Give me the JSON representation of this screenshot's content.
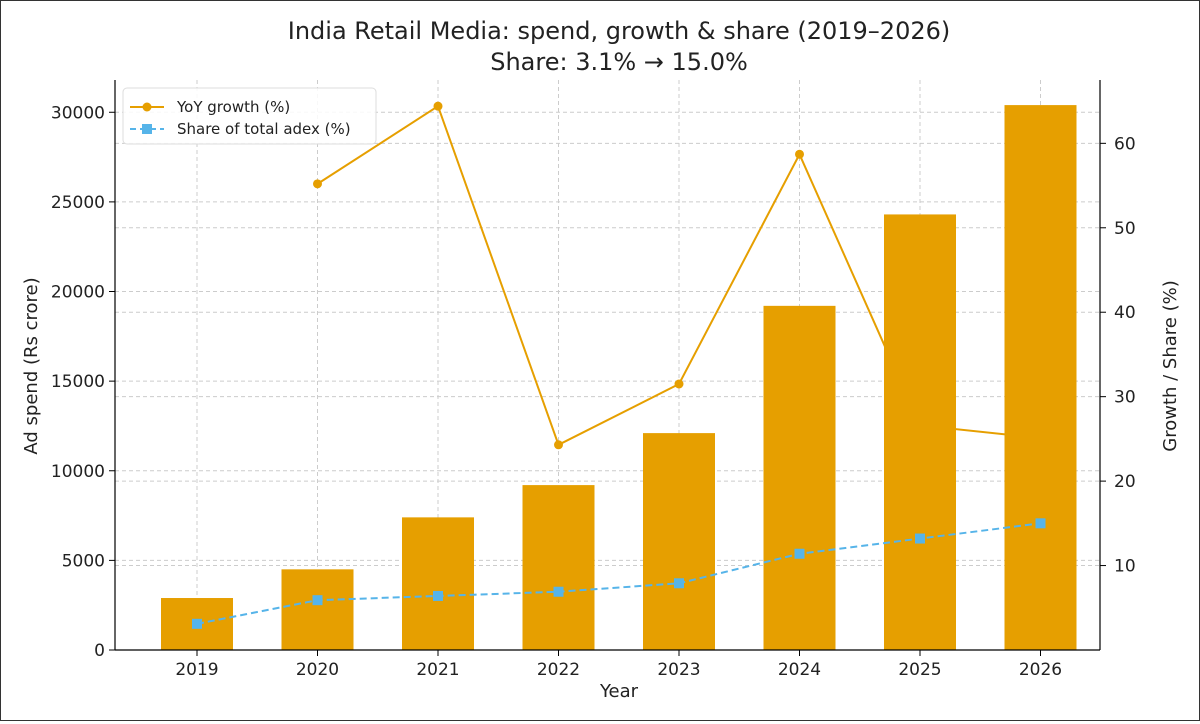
{
  "chart_data": {
    "type": "bar",
    "title": "India Retail Media: spend, growth & share (2019–2026)",
    "subtitle": "Share: 3.1% → 15.0%",
    "xlabel": "Year",
    "ylabel": "Ad spend (Rs crore)",
    "y2label": "Growth / Share (%)",
    "categories": [
      "2019",
      "2020",
      "2021",
      "2022",
      "2023",
      "2024",
      "2025",
      "2026"
    ],
    "ylim": [
      0,
      31800
    ],
    "y2lim": [
      0,
      67.5
    ],
    "yticks": [
      0,
      5000,
      10000,
      15000,
      20000,
      25000,
      30000
    ],
    "y2ticks": [
      10,
      20,
      30,
      40,
      50,
      60
    ],
    "grid": true,
    "legend_position": "top-left",
    "series": [
      {
        "type": "bar",
        "axis": "left",
        "color": "#E69F00",
        "values": [
          2900,
          4500,
          7400,
          9200,
          12100,
          19200,
          24300,
          30400
        ]
      },
      {
        "type": "line",
        "axis": "right",
        "name": "YoY growth (%)",
        "color": "#E69F00",
        "marker": "circle",
        "linestyle": "solid",
        "values": [
          null,
          55.2,
          64.4,
          24.3,
          31.5,
          58.7,
          26.6,
          25.1
        ]
      },
      {
        "type": "line",
        "axis": "right",
        "name": "Share of total adex (%)",
        "color": "#56B4E9",
        "marker": "square",
        "linestyle": "dashed",
        "values": [
          3.1,
          5.9,
          6.4,
          6.9,
          7.9,
          11.4,
          13.2,
          15.0
        ]
      }
    ]
  }
}
